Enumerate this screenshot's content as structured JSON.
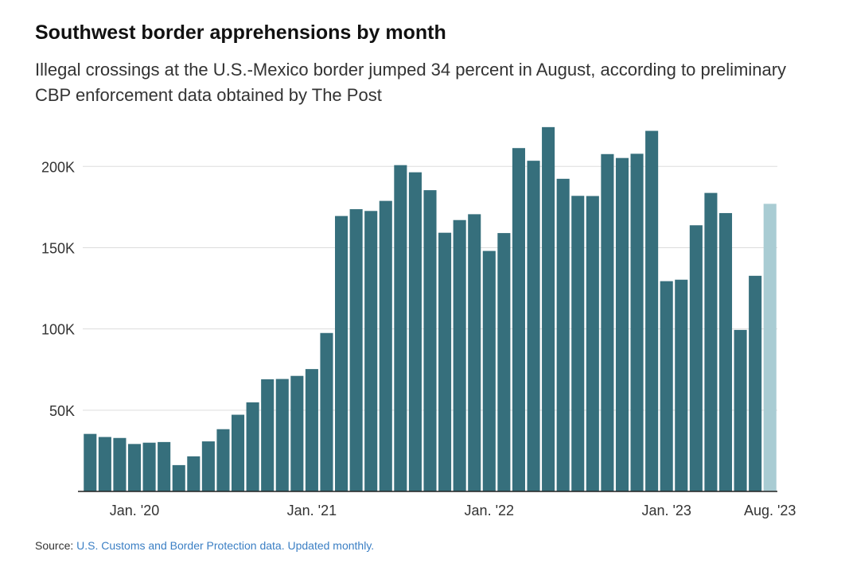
{
  "title": "Southwest border apprehensions by month",
  "subtitle": "Illegal crossings at the U.S.-Mexico border jumped 34 percent in August, according to preliminary CBP enforcement data obtained by The Post",
  "source": {
    "label": "Source:",
    "link_text": "U.S. Customs and Border Protection data. Updated monthly."
  },
  "colors": {
    "bar": "#366f7c",
    "bar_highlight": "#a9ccd3",
    "gridline": "#dddddd",
    "axis": "#222222",
    "link": "#3b7fc4"
  },
  "chart_data": {
    "type": "bar",
    "title": "Southwest border apprehensions by month",
    "xlabel": "",
    "ylabel": "",
    "ylim": [
      0,
      230000
    ],
    "yticks": [
      {
        "value": 50000,
        "label": "50K"
      },
      {
        "value": 100000,
        "label": "100K"
      },
      {
        "value": 150000,
        "label": "150K"
      },
      {
        "value": 200000,
        "label": "200K"
      }
    ],
    "grid": true,
    "highlight_last": true,
    "categories": [
      "Oct. '19",
      "Nov. '19",
      "Dec. '19",
      "Jan. '20",
      "Feb. '20",
      "Mar. '20",
      "Apr. '20",
      "May '20",
      "Jun. '20",
      "Jul. '20",
      "Aug. '20",
      "Sep. '20",
      "Oct. '20",
      "Nov. '20",
      "Dec. '20",
      "Jan. '21",
      "Feb. '21",
      "Mar. '21",
      "Apr. '21",
      "May '21",
      "Jun. '21",
      "Jul. '21",
      "Aug. '21",
      "Sep. '21",
      "Oct. '21",
      "Nov. '21",
      "Dec. '21",
      "Jan. '22",
      "Feb. '22",
      "Mar. '22",
      "Apr. '22",
      "May '22",
      "Jun. '22",
      "Jul. '22",
      "Aug. '22",
      "Sep. '22",
      "Oct. '22",
      "Nov. '22",
      "Dec. '22",
      "Jan. '23",
      "Feb. '23",
      "Mar. '23",
      "Apr. '23",
      "May '23",
      "Jun. '23",
      "Jul. '23",
      "Aug. '23"
    ],
    "values": [
      35400,
      33500,
      32900,
      29200,
      30000,
      30400,
      16200,
      21600,
      30800,
      38300,
      47200,
      54800,
      69000,
      69200,
      71100,
      75300,
      97500,
      169500,
      173700,
      172600,
      178800,
      200800,
      196400,
      185400,
      159200,
      167000,
      170600,
      148000,
      159000,
      211300,
      203500,
      224200,
      192400,
      181900,
      181800,
      207600,
      205200,
      207800,
      221900,
      129400,
      130300,
      163800,
      183700,
      171300,
      99400,
      132700,
      177000
    ],
    "xtick_labels": [
      {
        "category": "Jan. '20",
        "label": "Jan. '20"
      },
      {
        "category": "Jan. '21",
        "label": "Jan. '21"
      },
      {
        "category": "Jan. '22",
        "label": "Jan. '22"
      },
      {
        "category": "Jan. '23",
        "label": "Jan. '23"
      },
      {
        "category": "Aug. '23",
        "label": "Aug. '23"
      }
    ]
  }
}
